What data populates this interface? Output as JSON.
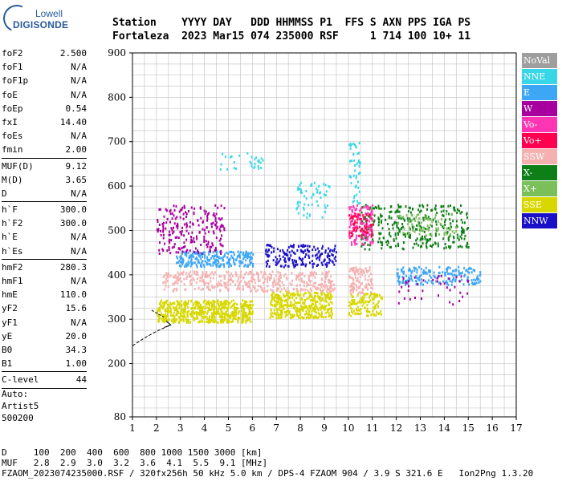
{
  "logo": {
    "line1": "Lowell",
    "line2": "DIGISONDE"
  },
  "header": {
    "line1": "Station    YYYY DAY   DDD HHMMSS P1  FFS S AXN PPS IGA PS",
    "line2": "Fortaleza  2023 Mar15 074 235000 RSF     1 714 100 10+ 11"
  },
  "params": [
    {
      "label": "foF2",
      "value": "2.500"
    },
    {
      "label": "foF1",
      "value": "N/A"
    },
    {
      "label": "foF1p",
      "value": "N/A"
    },
    {
      "label": "foE",
      "value": "N/A"
    },
    {
      "label": "foEp",
      "value": "0.54"
    },
    {
      "label": "fxI",
      "value": "14.40"
    },
    {
      "label": "foEs",
      "value": "N/A"
    },
    {
      "label": "fmin",
      "value": "2.00"
    },
    {
      "sep": true
    },
    {
      "label": "MUF(D)",
      "value": "9.12"
    },
    {
      "label": "M(D)",
      "value": "3.65"
    },
    {
      "label": "D",
      "value": "N/A"
    },
    {
      "sep": true
    },
    {
      "label": "h`F",
      "value": "300.0"
    },
    {
      "label": "h`F2",
      "value": "300.0"
    },
    {
      "label": "h`E",
      "value": "N/A"
    },
    {
      "label": "h`Es",
      "value": "N/A"
    },
    {
      "sep": true
    },
    {
      "label": "hmF2",
      "value": "280.3"
    },
    {
      "label": "hmF1",
      "value": "N/A"
    },
    {
      "label": "hmE",
      "value": "110.0"
    },
    {
      "label": "yF2",
      "value": "15.6"
    },
    {
      "label": "yF1",
      "value": "N/A"
    },
    {
      "label": "yE",
      "value": "20.0"
    },
    {
      "label": "B0",
      "value": "34.3"
    },
    {
      "label": "B1",
      "value": "1.00"
    },
    {
      "sep": true
    },
    {
      "label": "C-level",
      "value": "44"
    },
    {
      "sep": true
    }
  ],
  "auto": {
    "line1": "Auto:",
    "line2": "Artist5",
    "line3": "500200"
  },
  "footer": {
    "line1": "D     100  200  400  600  800 1000 1500 3000 [km]",
    "line2": "MUF   2.8  2.9  3.0  3.2  3.6  4.1  5.5  9.1 [MHz]",
    "line3": "FZAOM_2023074235000.RSF / 320fx256h 50 kHz 5.0 km / DPS-4 FZAOM 904 / 3.9 S 321.6 E   Ion2Png 1.3.20"
  },
  "legend": [
    {
      "label": "NoVal",
      "color": "#9e9e9e"
    },
    {
      "label": "NNE",
      "color": "#39d6e8"
    },
    {
      "label": "E",
      "color": "#3ea7f5"
    },
    {
      "label": "W",
      "color": "#a8009f"
    },
    {
      "label": "Vo-",
      "color": "#ff36b4"
    },
    {
      "label": "Vo+",
      "color": "#ff0050"
    },
    {
      "label": "SSW",
      "color": "#f5b0b0"
    },
    {
      "label": "X-",
      "color": "#0e7f16"
    },
    {
      "label": "X+",
      "color": "#7abf5a"
    },
    {
      "label": "SSE",
      "color": "#d8d800"
    },
    {
      "label": "NNW",
      "color": "#1a10c8"
    }
  ],
  "chart_data": {
    "type": "scatter",
    "xlim": [
      1,
      17
    ],
    "ylim": [
      80,
      900
    ],
    "x_ticks": [
      "1",
      "2",
      "3",
      "4",
      "5",
      "6",
      "7",
      "8",
      "9",
      "10",
      "11",
      "12",
      "13",
      "14",
      "15",
      "16",
      "17"
    ],
    "y_ticks": [
      "80",
      "200",
      "300",
      "400",
      "500",
      "600",
      "700",
      "800",
      "900"
    ],
    "grid": true,
    "trace_rx": [
      1.8,
      2.3
    ],
    "trace_ry": [
      320,
      305
    ],
    "clusters": [
      {
        "color": "SSE",
        "x": [
          2.0,
          6.0
        ],
        "y": [
          295,
          345
        ],
        "n": 600
      },
      {
        "color": "SSE",
        "x": [
          6.7,
          9.3
        ],
        "y": [
          305,
          365
        ],
        "n": 380
      },
      {
        "color": "SSE",
        "x": [
          10.0,
          11.4
        ],
        "y": [
          310,
          360
        ],
        "n": 120
      },
      {
        "color": "SSW",
        "x": [
          2.2,
          9.4
        ],
        "y": [
          365,
          410
        ],
        "n": 420
      },
      {
        "color": "SSW",
        "x": [
          10.0,
          11.0
        ],
        "y": [
          360,
          420
        ],
        "n": 100
      },
      {
        "color": "E",
        "x": [
          2.8,
          6.0
        ],
        "y": [
          420,
          455
        ],
        "n": 260
      },
      {
        "color": "E",
        "x": [
          12.0,
          15.5
        ],
        "y": [
          380,
          420
        ],
        "n": 200
      },
      {
        "color": "W",
        "x": [
          2.0,
          4.8
        ],
        "y": [
          450,
          560
        ],
        "n": 220
      },
      {
        "color": "NNE",
        "x": [
          4.6,
          6.5
        ],
        "y": [
          640,
          680
        ],
        "n": 30
      },
      {
        "color": "NNE",
        "x": [
          7.8,
          9.2
        ],
        "y": [
          530,
          610
        ],
        "n": 60
      },
      {
        "color": "NNW",
        "x": [
          6.5,
          9.5
        ],
        "y": [
          420,
          470
        ],
        "n": 180
      },
      {
        "color": "X-",
        "x": [
          10.5,
          15.0
        ],
        "y": [
          460,
          560
        ],
        "n": 320
      },
      {
        "color": "Vo-",
        "x": [
          10.0,
          11.0
        ],
        "y": [
          470,
          560
        ],
        "n": 120
      },
      {
        "color": "Vo+",
        "x": [
          10.0,
          11.0
        ],
        "y": [
          490,
          540
        ],
        "n": 60
      },
      {
        "color": "NNE",
        "x": [
          10.0,
          10.5
        ],
        "y": [
          560,
          700
        ],
        "n": 50
      },
      {
        "color": "X+",
        "x": [
          12.0,
          14.5
        ],
        "y": [
          490,
          540
        ],
        "n": 80
      },
      {
        "color": "W",
        "x": [
          12.0,
          15.0
        ],
        "y": [
          330,
          410
        ],
        "n": 40
      }
    ]
  }
}
